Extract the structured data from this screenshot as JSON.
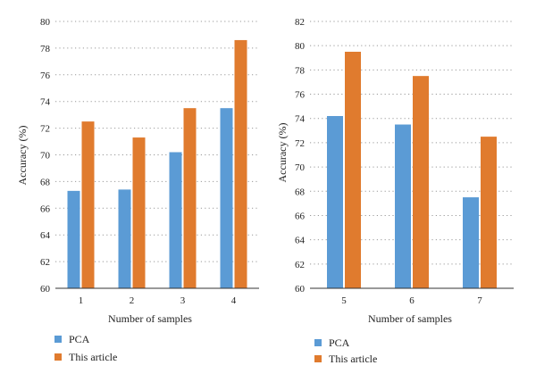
{
  "colors": {
    "pca": "#5b9bd5",
    "this_article": "#e07b2e",
    "grid": "#999999",
    "axis": "#333333"
  },
  "chart_data": [
    {
      "type": "bar",
      "categories": [
        "1",
        "2",
        "3",
        "4"
      ],
      "series": [
        {
          "name": "PCA",
          "values": [
            67.3,
            67.4,
            70.2,
            73.5
          ]
        },
        {
          "name": "This article",
          "values": [
            72.5,
            71.3,
            73.5,
            78.6
          ]
        }
      ],
      "xlabel": "Number of samples",
      "ylabel": "Accuracy (%)",
      "ylim": [
        60,
        80
      ],
      "yticks": [
        60,
        62,
        64,
        66,
        68,
        70,
        72,
        74,
        76,
        78,
        80
      ],
      "grid": "dotted-horizontal",
      "legend": "bottom-left"
    },
    {
      "type": "bar",
      "categories": [
        "5",
        "6",
        "7"
      ],
      "series": [
        {
          "name": "PCA",
          "values": [
            74.2,
            73.5,
            67.5
          ]
        },
        {
          "name": "This article",
          "values": [
            79.5,
            77.5,
            72.5
          ]
        }
      ],
      "xlabel": "Number of samples",
      "ylabel": "Accuracy (%)",
      "ylim": [
        60,
        82
      ],
      "yticks": [
        60,
        62,
        64,
        66,
        68,
        70,
        72,
        74,
        76,
        78,
        80,
        82
      ],
      "grid": "dotted-horizontal",
      "legend": "bottom-left"
    }
  ]
}
